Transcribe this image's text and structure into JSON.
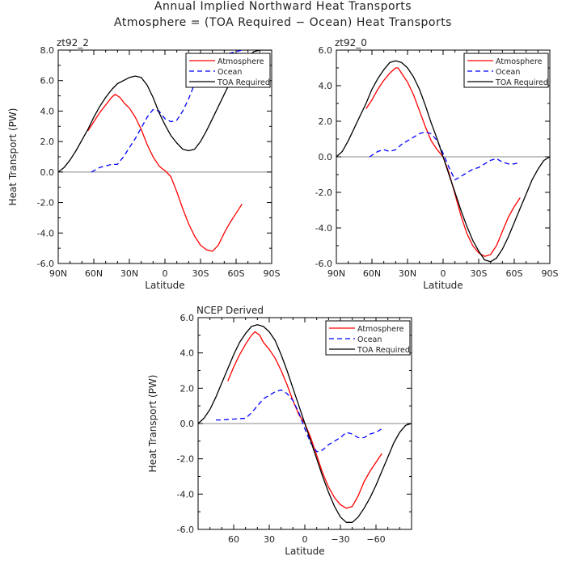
{
  "title_line1": "Annual Implied Northward Heat Transports",
  "title_line2": "Atmosphere = (TOA Required − Ocean) Heat Transports",
  "colors": {
    "atmosphere": "#ff0000",
    "ocean": "#0000ff",
    "toa": "#000000",
    "zero_line": "#888888"
  },
  "chart_data": [
    {
      "type": "line",
      "panel_title": "zt92_2",
      "xlabel": "Latitude",
      "ylabel": "Heat Transport (PW)",
      "xlim": [
        90,
        -90
      ],
      "ylim": [
        -6,
        8
      ],
      "x_ticks": [
        90,
        60,
        30,
        0,
        -30,
        -60,
        -90
      ],
      "x_tick_labels": [
        "90N",
        "60N",
        "30N",
        "0",
        "30S",
        "60S",
        "90S"
      ],
      "y_ticks": [
        -6,
        -4,
        -2,
        0,
        2,
        4,
        6,
        8
      ],
      "y_tick_labels": [
        "-6.0",
        "-4.0",
        "-2.0",
        "0.0",
        "2.0",
        "4.0",
        "6.0",
        "8.0"
      ],
      "legend": "top-right",
      "series": [
        {
          "name": "Atmosphere",
          "style": "solid",
          "color": "#ff0000",
          "x": [
            65,
            60,
            55,
            50,
            45,
            42,
            38,
            34,
            30,
            25,
            20,
            15,
            10,
            5,
            2,
            0,
            -5,
            -10,
            -15,
            -20,
            -25,
            -30,
            -35,
            -40,
            -45,
            -50,
            -55,
            -60,
            -65
          ],
          "y": [
            2.7,
            3.3,
            3.9,
            4.4,
            4.9,
            5.1,
            4.9,
            4.5,
            4.2,
            3.6,
            2.8,
            1.8,
            1.0,
            0.4,
            0.2,
            0.1,
            -0.3,
            -1.3,
            -2.4,
            -3.4,
            -4.2,
            -4.8,
            -5.1,
            -5.2,
            -4.8,
            -4.0,
            -3.3,
            -2.7,
            -2.1
          ]
        },
        {
          "name": "Ocean",
          "style": "dashed",
          "color": "#0000ff",
          "x": [
            62,
            55,
            50,
            45,
            40,
            35,
            30,
            25,
            20,
            15,
            10,
            5,
            0,
            -5,
            -10,
            -15,
            -20,
            -25,
            -30,
            -35,
            -40,
            -45,
            -50,
            -55,
            -60,
            -65
          ],
          "y": [
            0.0,
            0.3,
            0.4,
            0.5,
            0.5,
            1.0,
            1.6,
            2.2,
            2.9,
            3.6,
            4.1,
            4.0,
            3.5,
            3.3,
            3.4,
            4.0,
            4.8,
            5.8,
            6.5,
            7.0,
            7.3,
            7.5,
            7.7,
            7.8,
            7.9,
            8.0
          ]
        },
        {
          "name": "TOA Required",
          "style": "solid",
          "color": "#000000",
          "x": [
            90,
            85,
            80,
            75,
            70,
            65,
            60,
            55,
            50,
            45,
            40,
            35,
            30,
            25,
            20,
            15,
            10,
            5,
            0,
            -5,
            -10,
            -15,
            -20,
            -25,
            -30,
            -35,
            -40,
            -45,
            -50,
            -55,
            -60,
            -65,
            -70,
            -75,
            -80,
            -85,
            -90
          ],
          "y": [
            0.0,
            0.3,
            0.8,
            1.4,
            2.1,
            2.8,
            3.6,
            4.3,
            4.9,
            5.4,
            5.8,
            6.0,
            6.2,
            6.3,
            6.2,
            5.7,
            4.9,
            3.9,
            3.1,
            2.4,
            1.9,
            1.5,
            1.4,
            1.5,
            2.0,
            2.7,
            3.5,
            4.3,
            5.1,
            5.9,
            6.6,
            7.2,
            7.6,
            7.9,
            8.0,
            8.0,
            8.0
          ]
        }
      ]
    },
    {
      "type": "line",
      "panel_title": "zt92_0",
      "xlabel": "Latitude",
      "ylabel": "",
      "xlim": [
        90,
        -90
      ],
      "ylim": [
        -6,
        6
      ],
      "x_ticks": [
        90,
        60,
        30,
        0,
        -30,
        -60,
        -90
      ],
      "x_tick_labels": [
        "90N",
        "60N",
        "30N",
        "0",
        "30S",
        "60S",
        "90S"
      ],
      "y_ticks": [
        -6,
        -4,
        -2,
        0,
        2,
        4,
        6
      ],
      "y_tick_labels": [
        "-6.0",
        "-4.0",
        "-2.0",
        "0.0",
        "2.0",
        "4.0",
        "6.0"
      ],
      "legend": "top-right",
      "series": [
        {
          "name": "Atmosphere",
          "style": "solid",
          "color": "#ff0000",
          "x": [
            65,
            60,
            55,
            50,
            45,
            40,
            38,
            35,
            30,
            25,
            20,
            15,
            10,
            5,
            0,
            -5,
            -10,
            -15,
            -20,
            -25,
            -30,
            -35,
            -40,
            -45,
            -50,
            -55,
            -60,
            -65
          ],
          "y": [
            2.7,
            3.2,
            3.8,
            4.3,
            4.7,
            5.0,
            5.0,
            4.7,
            4.2,
            3.5,
            2.6,
            1.7,
            0.9,
            0.4,
            0.0,
            -0.9,
            -2.1,
            -3.3,
            -4.3,
            -5.0,
            -5.4,
            -5.6,
            -5.5,
            -5.0,
            -4.2,
            -3.4,
            -2.8,
            -2.3
          ]
        },
        {
          "name": "Ocean",
          "style": "dashed",
          "color": "#0000ff",
          "x": [
            62,
            55,
            50,
            45,
            40,
            35,
            30,
            25,
            20,
            15,
            10,
            5,
            0,
            -5,
            -10,
            -15,
            -20,
            -25,
            -30,
            -35,
            -40,
            -45,
            -50,
            -55,
            -60,
            -65
          ],
          "y": [
            0.0,
            0.3,
            0.4,
            0.3,
            0.4,
            0.7,
            0.9,
            1.1,
            1.3,
            1.4,
            1.3,
            0.9,
            0.2,
            -0.6,
            -1.3,
            -1.1,
            -0.9,
            -0.7,
            -0.6,
            -0.4,
            -0.2,
            -0.1,
            -0.3,
            -0.4,
            -0.4,
            -0.3
          ]
        },
        {
          "name": "TOA Required",
          "style": "solid",
          "color": "#000000",
          "x": [
            90,
            85,
            80,
            75,
            70,
            65,
            60,
            55,
            50,
            45,
            40,
            35,
            30,
            25,
            20,
            15,
            10,
            5,
            0,
            -5,
            -10,
            -15,
            -20,
            -25,
            -30,
            -35,
            -40,
            -45,
            -50,
            -55,
            -60,
            -65,
            -70,
            -75,
            -80,
            -85,
            -90
          ],
          "y": [
            0.0,
            0.3,
            0.9,
            1.6,
            2.3,
            3.0,
            3.8,
            4.4,
            4.9,
            5.3,
            5.4,
            5.3,
            5.0,
            4.5,
            3.8,
            2.9,
            1.9,
            1.0,
            0.0,
            -1.0,
            -2.0,
            -3.0,
            -3.9,
            -4.7,
            -5.3,
            -5.8,
            -5.9,
            -5.7,
            -5.2,
            -4.5,
            -3.7,
            -2.9,
            -2.1,
            -1.3,
            -0.7,
            -0.2,
            0.0
          ]
        }
      ]
    },
    {
      "type": "line",
      "panel_title": "NCEP Derived",
      "xlabel": "Latitude",
      "ylabel": "Heat Transport (PW)",
      "xlim": [
        90,
        -90
      ],
      "ylim": [
        -6,
        6
      ],
      "x_ticks": [
        60,
        30,
        0,
        -30,
        -60
      ],
      "x_tick_labels": [
        "60",
        "30",
        "0",
        "−30",
        "−60"
      ],
      "y_ticks": [
        -6,
        -4,
        -2,
        0,
        2,
        4,
        6
      ],
      "y_tick_labels": [
        "-6.0",
        "-4.0",
        "-2.0",
        "0.0",
        "2.0",
        "4.0",
        "6.0"
      ],
      "legend": "top-right",
      "series": [
        {
          "name": "Atmosphere",
          "style": "solid",
          "color": "#ff0000",
          "x": [
            65,
            60,
            55,
            50,
            45,
            42,
            38,
            35,
            30,
            25,
            20,
            15,
            10,
            5,
            0,
            -5,
            -10,
            -15,
            -20,
            -25,
            -30,
            -35,
            -40,
            -45,
            -50,
            -55,
            -60,
            -65
          ],
          "y": [
            2.4,
            3.2,
            3.9,
            4.5,
            5.0,
            5.2,
            5.0,
            4.6,
            4.2,
            3.7,
            3.0,
            2.2,
            1.3,
            0.5,
            0.0,
            -0.8,
            -1.8,
            -2.8,
            -3.6,
            -4.2,
            -4.6,
            -4.8,
            -4.7,
            -4.1,
            -3.3,
            -2.7,
            -2.2,
            -1.7
          ]
        },
        {
          "name": "Ocean",
          "style": "dashed",
          "color": "#0000ff",
          "x": [
            75,
            70,
            60,
            50,
            45,
            40,
            35,
            30,
            25,
            20,
            15,
            10,
            5,
            0,
            -5,
            -10,
            -15,
            -20,
            -25,
            -30,
            -35,
            -40,
            -45,
            -50,
            -55,
            -60,
            -65
          ],
          "y": [
            0.2,
            0.2,
            0.25,
            0.3,
            0.6,
            1.0,
            1.4,
            1.6,
            1.8,
            1.9,
            1.7,
            1.3,
            0.6,
            -0.3,
            -1.1,
            -1.6,
            -1.5,
            -1.2,
            -1.0,
            -0.8,
            -0.5,
            -0.6,
            -0.8,
            -0.8,
            -0.6,
            -0.5,
            -0.3
          ]
        },
        {
          "name": "TOA Required",
          "style": "solid",
          "color": "#000000",
          "x": [
            90,
            85,
            80,
            75,
            70,
            65,
            60,
            55,
            50,
            45,
            40,
            35,
            30,
            25,
            20,
            15,
            10,
            5,
            0,
            -5,
            -10,
            -15,
            -20,
            -25,
            -30,
            -35,
            -40,
            -45,
            -50,
            -55,
            -60,
            -65,
            -70,
            -75,
            -80,
            -85,
            -90
          ],
          "y": [
            0.0,
            0.3,
            0.8,
            1.5,
            2.3,
            3.1,
            3.9,
            4.6,
            5.1,
            5.5,
            5.6,
            5.5,
            5.2,
            4.7,
            3.9,
            3.0,
            2.0,
            1.0,
            0.0,
            -1.0,
            -2.0,
            -3.0,
            -3.9,
            -4.7,
            -5.3,
            -5.6,
            -5.6,
            -5.3,
            -4.8,
            -4.2,
            -3.5,
            -2.7,
            -1.9,
            -1.1,
            -0.5,
            -0.1,
            0.0
          ]
        }
      ]
    }
  ]
}
